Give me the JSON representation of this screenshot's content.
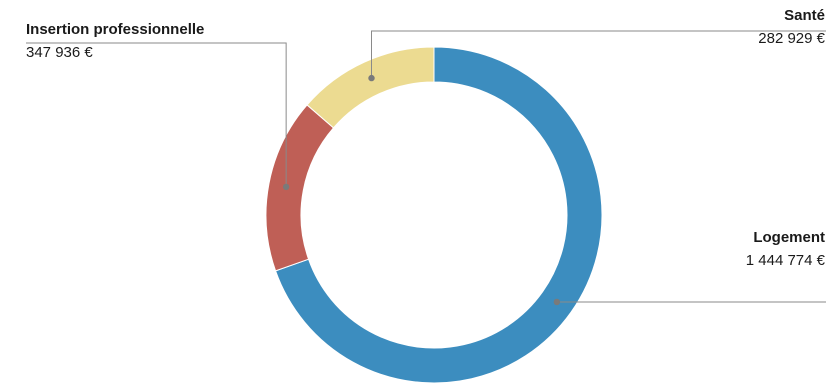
{
  "chart_data": {
    "type": "pie",
    "title": "",
    "categories": [
      "Logement",
      "Insertion professionnelle",
      "Santé"
    ],
    "values": [
      1444774,
      347936,
      282929
    ],
    "value_labels": [
      "1 444 774 €",
      "347 936 €",
      "282 929 €"
    ],
    "colors": [
      "#3c8dbf",
      "#bf5f56",
      "#ecdb91"
    ],
    "donut": true,
    "start_angle": "top, clockwise"
  }
}
